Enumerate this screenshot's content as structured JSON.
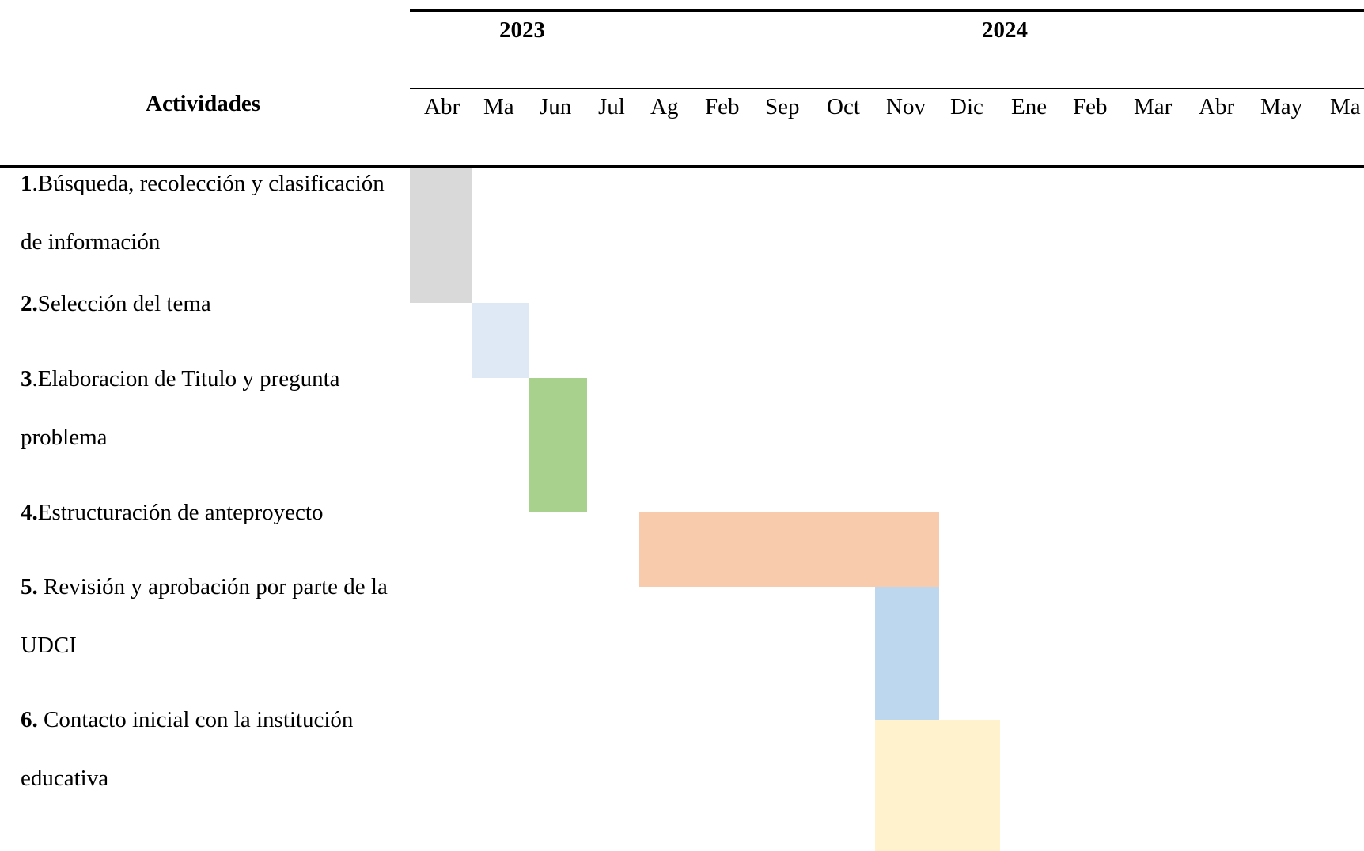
{
  "header": {
    "years": [
      {
        "label": "2023"
      },
      {
        "label": "2024"
      }
    ],
    "activities_label": "Actividades",
    "months": [
      "Abr",
      "Ma",
      "Jun",
      "Jul",
      "Ag",
      "Feb",
      "Sep",
      "Oct",
      "Nov",
      "Dic",
      "Ene",
      "Feb",
      "Mar",
      "Abr",
      "May",
      "Ma"
    ]
  },
  "activities": [
    {
      "number": "1",
      "text": ".Búsqueda, recolección y clasificación de información",
      "start_month_index": 0,
      "end_month_index": 0,
      "color": "#d9d9d9"
    },
    {
      "number": "2.",
      "text": "Selección del tema",
      "start_month_index": 1,
      "end_month_index": 1,
      "color": "#dee9f5"
    },
    {
      "number": "3",
      "text": ".Elaboracion de Titulo y pregunta problema",
      "start_month_index": 2,
      "end_month_index": 2,
      "color": "#a9d18e"
    },
    {
      "number": "4.",
      "text": "Estructuración de anteproyecto",
      "start_month_index": 4,
      "end_month_index": 8,
      "color": "#f8cbad"
    },
    {
      "number": "5.",
      "text": " Revisión y aprobación por parte de la UDCI",
      "start_month_index": 8,
      "end_month_index": 8,
      "color": "#bdd7ee"
    },
    {
      "number": "6.",
      "text": " Contacto inicial con la institución educativa",
      "start_month_index": 8,
      "end_month_index": 9,
      "color": "#fff2cc"
    }
  ]
}
